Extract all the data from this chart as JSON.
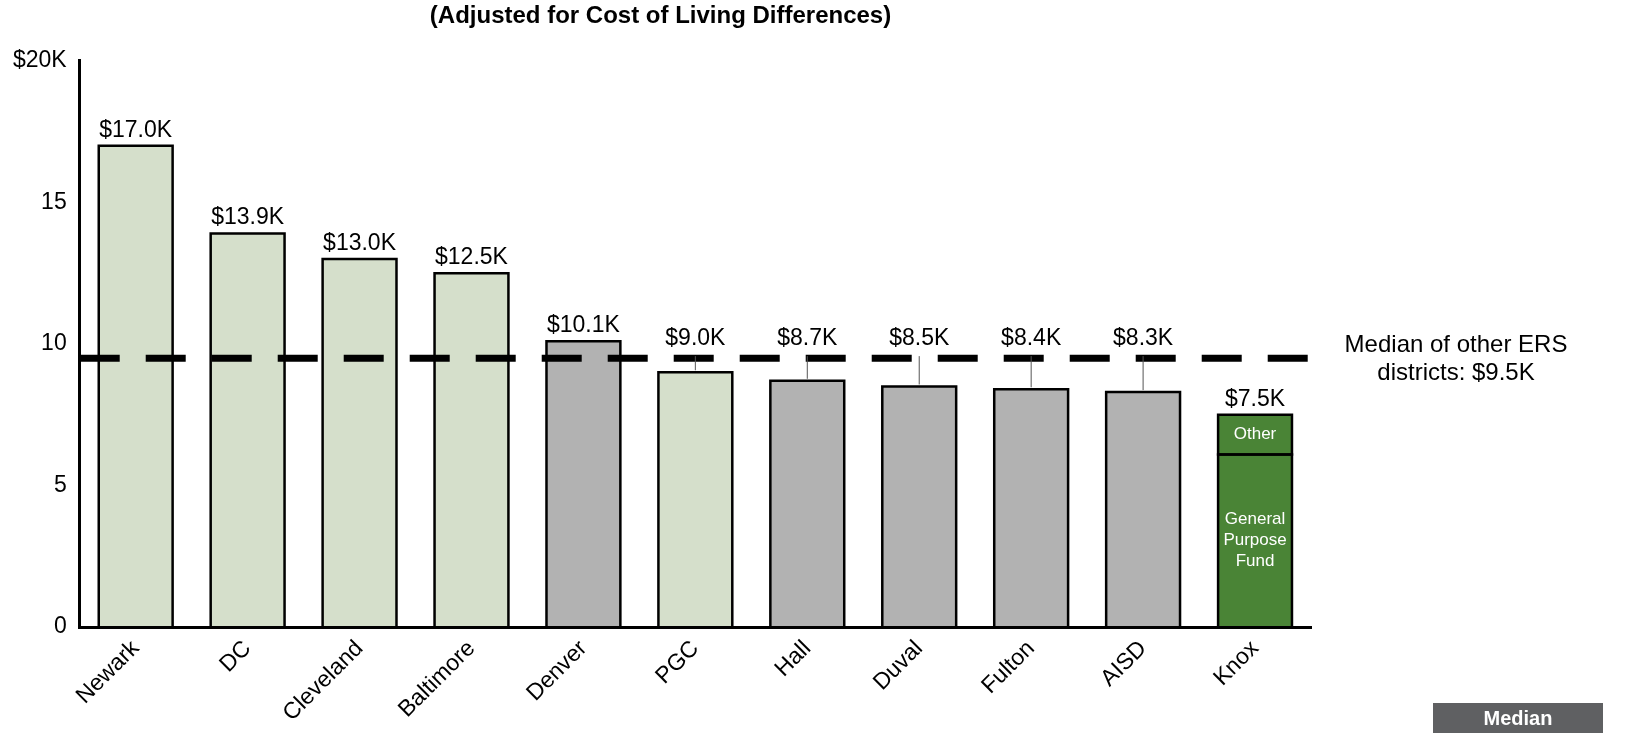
{
  "chart_data": {
    "type": "bar",
    "title": "(Adjusted for Cost of Living Differences)",
    "categories": [
      "Newark",
      "DC",
      "Cleveland",
      "Baltimore",
      "Denver",
      "PGC",
      "Hall",
      "Duval",
      "Fulton",
      "AISD",
      "Knox"
    ],
    "stacked": true,
    "series": [
      {
        "name": "General Purpose Fund",
        "colors": [
          "#d5dfcb",
          "#d5dfcb",
          "#d5dfcb",
          "#d5dfcb",
          "#b2b2b2",
          "#d5dfcb",
          "#b2b2b2",
          "#b2b2b2",
          "#b2b2b2",
          "#b2b2b2",
          "#4a8436"
        ],
        "values": [
          17.0,
          13.9,
          13.0,
          12.5,
          10.1,
          9.0,
          8.7,
          8.5,
          8.4,
          8.3,
          6.1
        ]
      },
      {
        "name": "Other",
        "color": "#4a8436",
        "values": [
          null,
          null,
          null,
          null,
          null,
          null,
          null,
          null,
          null,
          null,
          1.4
        ]
      }
    ],
    "totals": [
      "$17.0K",
      "$13.9K",
      "$13.0K",
      "$12.5K",
      "$10.1K",
      "$9.0K",
      "$8.7K",
      "$8.5K",
      "$8.4K",
      "$8.3K",
      "$7.5K"
    ],
    "ylim": [
      0,
      20
    ],
    "yticks": [
      0,
      5,
      10,
      15,
      {
        "value": 20,
        "label": "$20K"
      }
    ],
    "grid": false,
    "legend": false,
    "ref_lines": [
      {
        "axis": "y",
        "value": 9.5,
        "label": "Median of other ERS districts: $9.5K",
        "line_style": "dashed",
        "color": "#000000"
      }
    ],
    "annotations": [
      "Median"
    ]
  }
}
